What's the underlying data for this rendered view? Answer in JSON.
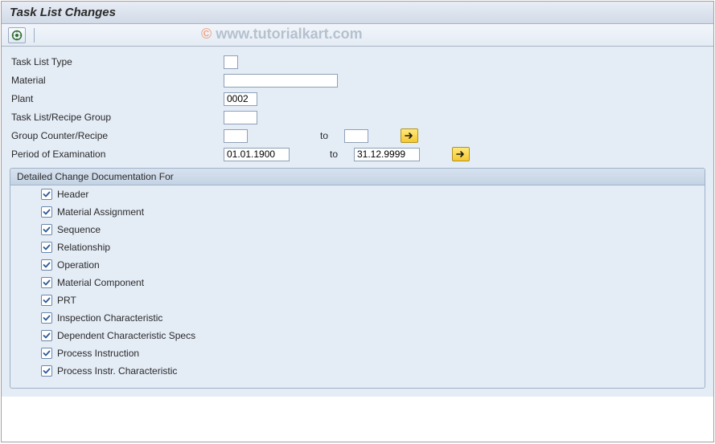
{
  "colors": {
    "page_bg": "#e4ecf6",
    "title_grad_top": "#e8edf5",
    "title_grad_bot": "#d2dae7",
    "border": "#9fb2c9",
    "group_header_top": "#d7e2ef",
    "group_header_bot": "#c4d3e4",
    "arrow_btn_top": "#ffe87a",
    "arrow_btn_bot": "#f5c831",
    "input_border": "#8ea0b8",
    "text": "#2a2a2a",
    "watermark_c": "#f26a2f",
    "watermark_text": "#8a9aad"
  },
  "watermark": {
    "copyright": "©",
    "text": " www.tutorialkart.com"
  },
  "title": "Task List Changes",
  "form": {
    "task_list_type": {
      "label": "Task List Type",
      "value": ""
    },
    "material": {
      "label": "Material",
      "value": ""
    },
    "plant": {
      "label": "Plant",
      "value": "0002"
    },
    "task_list_group": {
      "label": "Task List/Recipe Group",
      "value": ""
    },
    "group_counter": {
      "label": "Group Counter/Recipe",
      "from": "",
      "to_label": "to",
      "to": ""
    },
    "period": {
      "label": "Period of Examination",
      "from": "01.01.1900",
      "to_label": "to",
      "to": "31.12.9999"
    }
  },
  "group": {
    "title": "Detailed Change Documentation For",
    "items": [
      {
        "label": "Header",
        "checked": true
      },
      {
        "label": "Material Assignment",
        "checked": true
      },
      {
        "label": "Sequence",
        "checked": true
      },
      {
        "label": "Relationship",
        "checked": true
      },
      {
        "label": "Operation",
        "checked": true
      },
      {
        "label": "Material Component",
        "checked": true
      },
      {
        "label": "PRT",
        "checked": true
      },
      {
        "label": "Inspection Characteristic",
        "checked": true
      },
      {
        "label": "Dependent Characteristic Specs",
        "checked": true
      },
      {
        "label": "Process Instruction",
        "checked": true
      },
      {
        "label": "Process Instr. Characteristic",
        "checked": true
      }
    ]
  }
}
